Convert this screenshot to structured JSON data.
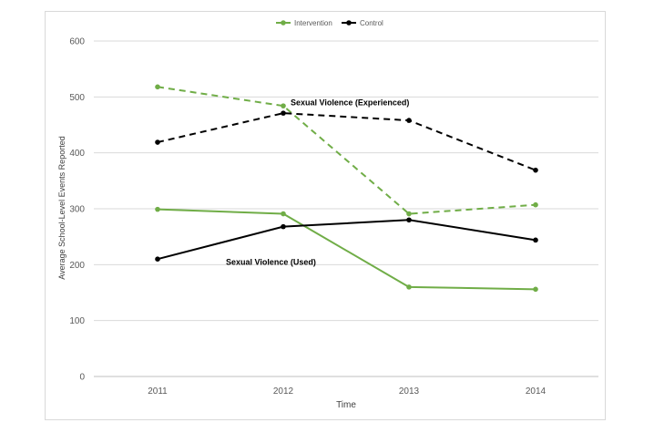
{
  "chart_data": {
    "type": "line",
    "categories": [
      "2011",
      "2012",
      "2013",
      "2014"
    ],
    "xlabel": "Time",
    "ylabel": "Average School-Level Events Reported",
    "ylim": [
      0,
      600
    ],
    "yticks": [
      0,
      100,
      200,
      300,
      400,
      500,
      600
    ],
    "grid": true,
    "legend_position": "top",
    "legend": [
      {
        "label": "Intervention",
        "color": "#70ad47"
      },
      {
        "label": "Control",
        "color": "#000000"
      }
    ],
    "series": [
      {
        "name": "Intervention",
        "group": "Sexual Violence (Experienced)",
        "color": "#70ad47",
        "style": "dashed",
        "values": [
          518,
          484,
          291,
          307
        ]
      },
      {
        "name": "Control",
        "group": "Sexual Violence (Experienced)",
        "color": "#000000",
        "style": "dashed",
        "values": [
          419,
          471,
          458,
          369
        ]
      },
      {
        "name": "Intervention",
        "group": "Sexual Violence (Used)",
        "color": "#70ad47",
        "style": "solid",
        "values": [
          299,
          291,
          160,
          156
        ]
      },
      {
        "name": "Control",
        "group": "Sexual Violence (Used)",
        "color": "#000000",
        "style": "solid",
        "values": [
          210,
          268,
          280,
          244
        ]
      }
    ],
    "annotations": [
      {
        "text": "Sexual Violence (Experienced)",
        "x": "2012",
        "y": 490
      },
      {
        "text": "Sexual Violence (Used)",
        "x": "2011",
        "y": 205
      }
    ]
  }
}
